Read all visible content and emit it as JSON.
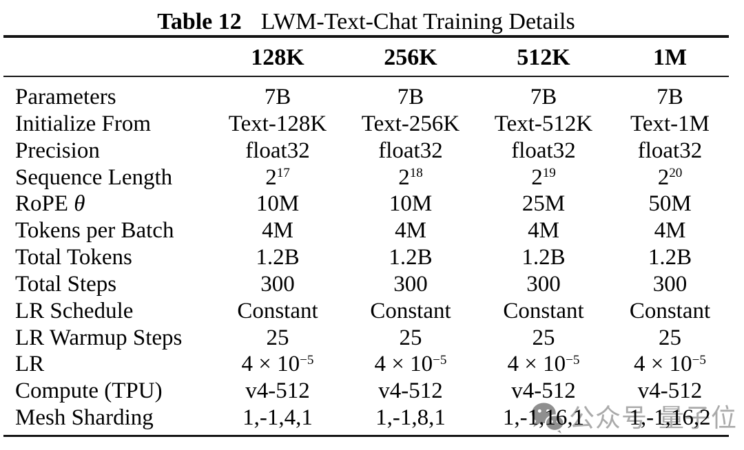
{
  "caption": {
    "label": "Table 12",
    "title": "LWM-Text-Chat Training Details"
  },
  "columns": [
    "128K",
    "256K",
    "512K",
    "1M"
  ],
  "rows": [
    {
      "label": "Parameters",
      "cells": [
        "7B",
        "7B",
        "7B",
        "7B"
      ]
    },
    {
      "label": "Initialize From",
      "cells": [
        "Text-128K",
        "Text-256K",
        "Text-512K",
        "Text-1M"
      ]
    },
    {
      "label": "Precision",
      "cells": [
        "float32",
        "float32",
        "float32",
        "float32"
      ]
    },
    {
      "label": "Sequence Length",
      "cells": [
        {
          "text": "2",
          "sup": "17"
        },
        {
          "text": "2",
          "sup": "18"
        },
        {
          "text": "2",
          "sup": "19"
        },
        {
          "text": "2",
          "sup": "20"
        }
      ]
    },
    {
      "label": "RoPE",
      "label_math": "θ",
      "cells": [
        "10M",
        "10M",
        "25M",
        "50M"
      ]
    },
    {
      "label": "Tokens per Batch",
      "cells": [
        "4M",
        "4M",
        "4M",
        "4M"
      ]
    },
    {
      "label": "Total Tokens",
      "cells": [
        "1.2B",
        "1.2B",
        "1.2B",
        "1.2B"
      ]
    },
    {
      "label": "Total Steps",
      "cells": [
        "300",
        "300",
        "300",
        "300"
      ]
    },
    {
      "label": "LR Schedule",
      "cells": [
        "Constant",
        "Constant",
        "Constant",
        "Constant"
      ]
    },
    {
      "label": "LR Warmup Steps",
      "cells": [
        "25",
        "25",
        "25",
        "25"
      ]
    },
    {
      "label": "LR",
      "cells": [
        {
          "text": "4 × 10",
          "sup": "−5"
        },
        {
          "text": "4 × 10",
          "sup": "−5"
        },
        {
          "text": "4 × 10",
          "sup": "−5"
        },
        {
          "text": "4 × 10",
          "sup": "−5"
        }
      ]
    },
    {
      "label": "Compute (TPU)",
      "cells": [
        "v4-512",
        "v4-512",
        "v4-512",
        "v4-512"
      ]
    },
    {
      "label": "Mesh Sharding",
      "cells": [
        "1,-1,4,1",
        "1,-1,8,1",
        "1,-1,16,1",
        "1,-1,16,2"
      ]
    }
  ],
  "watermark": {
    "icon": "wechat-icon",
    "text_1": "公众号",
    "text_2": "量子位",
    "text_color": "#aaaaaa",
    "icon_color": "#8f8f8f"
  }
}
